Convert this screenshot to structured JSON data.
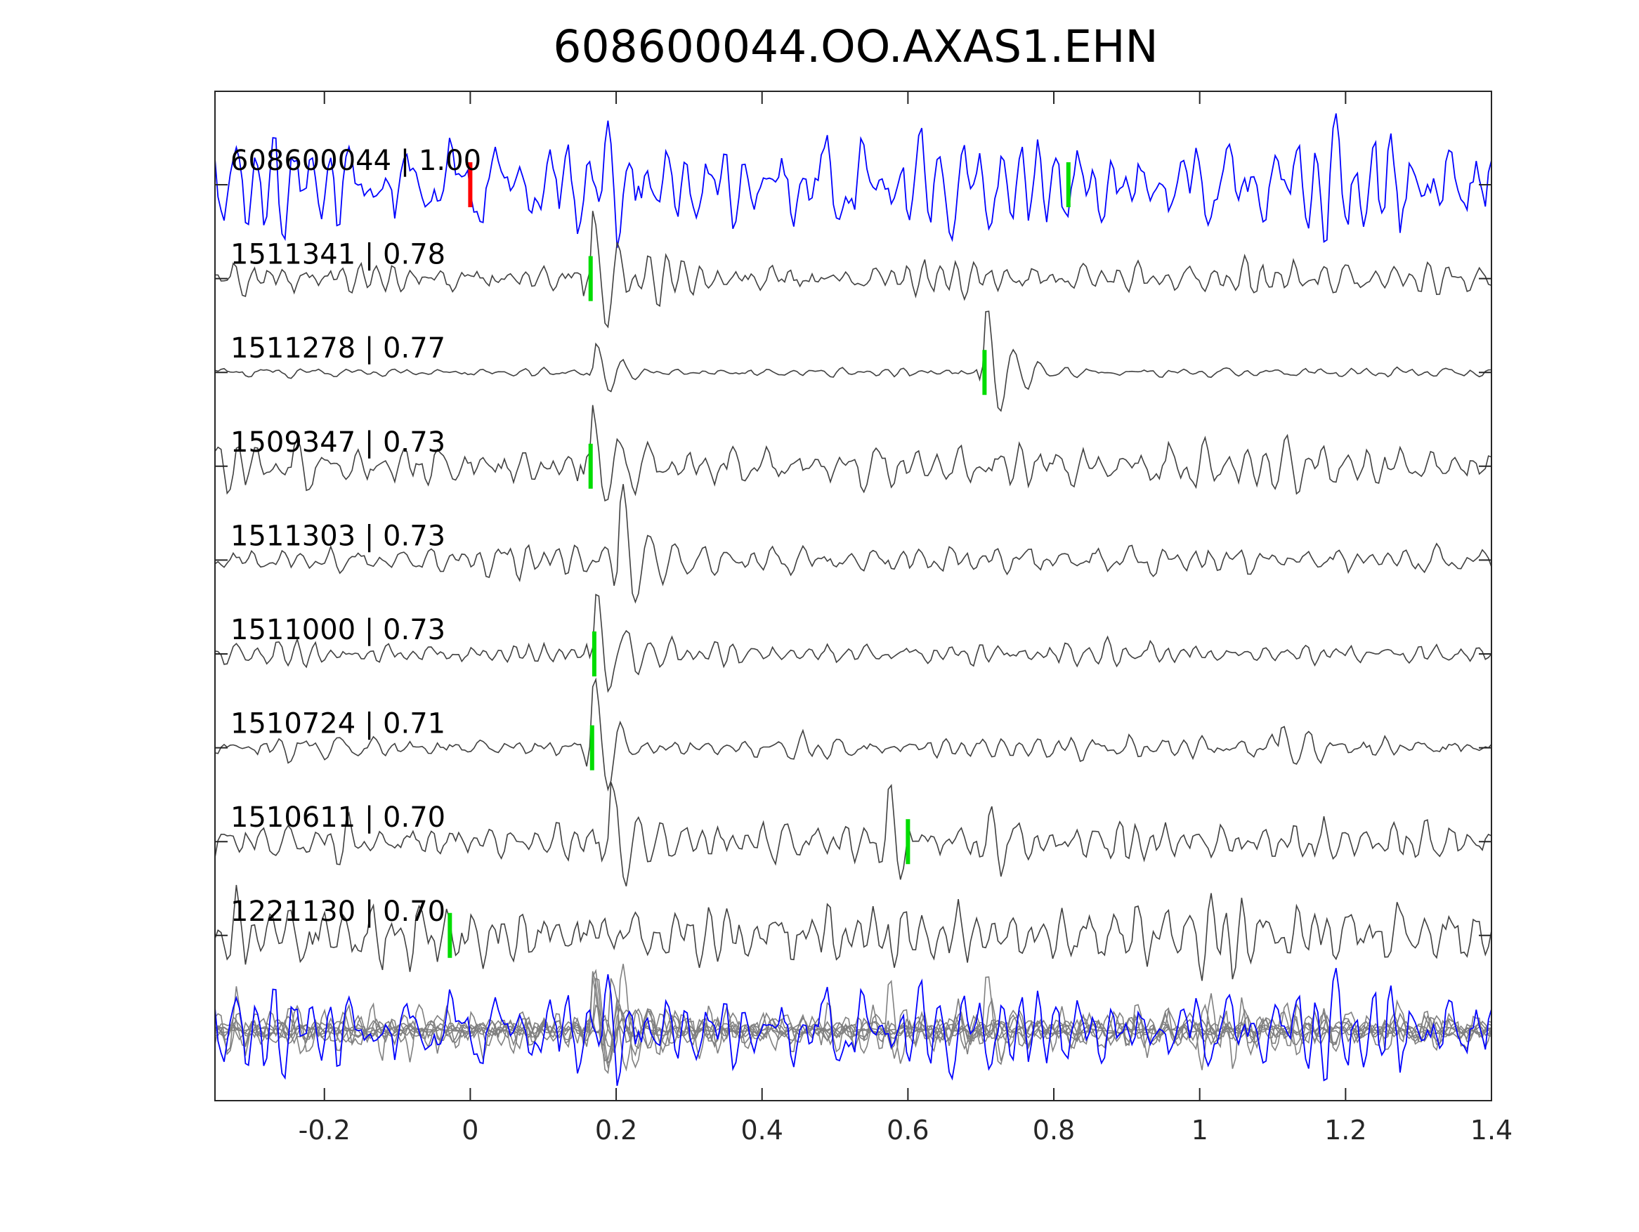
{
  "chart_data": {
    "type": "line",
    "title": "608600044.OO.AXAS1.EHN",
    "xlabel": "",
    "ylabel": "",
    "xlim": [
      -0.35,
      1.4
    ],
    "xticks": [
      -0.2,
      0,
      0.2,
      0.4,
      0.6,
      0.8,
      1,
      1.2,
      1.4
    ],
    "xtick_labels": [
      "-0.2",
      "0",
      "0.2",
      "0.4",
      "0.6",
      "0.8",
      "1",
      "1.2",
      "1.4"
    ],
    "grid": false,
    "colors": {
      "master": "#0000ff",
      "trace": "#404040",
      "stack": "#808080",
      "pick_red": "#ff0000",
      "pick_green": "#00dd00",
      "axes": "#262626"
    },
    "traces": [
      {
        "label": "608600044 | 1.00",
        "event_id": "608600044",
        "correlation": 1.0,
        "is_master": true,
        "seed": 11,
        "picks": [
          {
            "color": "red",
            "time": 0.0
          },
          {
            "color": "green",
            "time": 0.82
          }
        ],
        "arrivals": [],
        "noise_amp": 0.25
      },
      {
        "label": "1511341 | 0.78",
        "event_id": "1511341",
        "correlation": 0.78,
        "is_master": false,
        "seed": 23,
        "picks": [
          {
            "color": "green",
            "time": 0.165
          }
        ],
        "arrivals": [
          {
            "time": 0.165,
            "amp": 0.9
          }
        ],
        "noise_amp": 0.18
      },
      {
        "label": "1511278 | 0.77",
        "event_id": "1511278",
        "correlation": 0.77,
        "is_master": false,
        "seed": 37,
        "picks": [
          {
            "color": "green",
            "time": 0.705
          }
        ],
        "arrivals": [
          {
            "time": 0.17,
            "amp": 0.35
          },
          {
            "time": 0.705,
            "amp": 0.85
          }
        ],
        "noise_amp": 0.05
      },
      {
        "label": "1509347 | 0.73",
        "event_id": "1509347",
        "correlation": 0.73,
        "is_master": false,
        "seed": 41,
        "picks": [
          {
            "color": "green",
            "time": 0.165
          }
        ],
        "arrivals": [
          {
            "time": 0.165,
            "amp": 0.9
          }
        ],
        "noise_amp": 0.22
      },
      {
        "label": "1511303 | 0.73",
        "event_id": "1511303",
        "correlation": 0.73,
        "is_master": false,
        "seed": 53,
        "picks": [],
        "arrivals": [
          {
            "time": 0.205,
            "amp": 0.9
          }
        ],
        "noise_amp": 0.14
      },
      {
        "label": "1511000 | 0.73",
        "event_id": "1511000",
        "correlation": 0.73,
        "is_master": false,
        "seed": 67,
        "picks": [
          {
            "color": "green",
            "time": 0.17
          }
        ],
        "arrivals": [
          {
            "time": 0.17,
            "amp": 0.85
          }
        ],
        "noise_amp": 0.12
      },
      {
        "label": "1510724 | 0.71",
        "event_id": "1510724",
        "correlation": 0.71,
        "is_master": false,
        "seed": 79,
        "picks": [
          {
            "color": "green",
            "time": 0.167
          }
        ],
        "arrivals": [
          {
            "time": 0.167,
            "amp": 0.85
          },
          {
            "time": 1.11,
            "amp": 0.4
          }
        ],
        "noise_amp": 0.12
      },
      {
        "label": "1510611 | 0.70",
        "event_id": "1510611",
        "correlation": 0.7,
        "is_master": false,
        "seed": 89,
        "picks": [
          {
            "color": "green",
            "time": 0.6
          }
        ],
        "arrivals": [
          {
            "time": 0.19,
            "amp": 0.85
          },
          {
            "time": 0.57,
            "amp": 0.6
          }
        ],
        "noise_amp": 0.22
      },
      {
        "label": "1221130 | 0.70",
        "event_id": "1221130",
        "correlation": 0.7,
        "is_master": false,
        "seed": 97,
        "picks": [
          {
            "color": "green",
            "time": -0.028
          }
        ],
        "arrivals": [],
        "noise_amp": 0.38
      }
    ],
    "stack_panel": {
      "description_label": "",
      "overlay": true
    }
  }
}
